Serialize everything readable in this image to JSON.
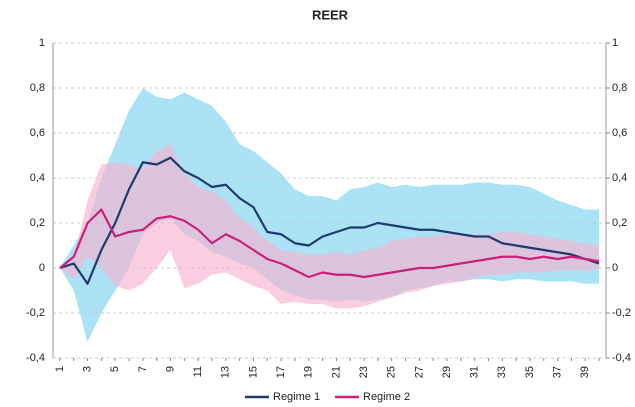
{
  "chart_data": {
    "type": "line",
    "title": "REER",
    "categories": [
      1,
      null,
      3,
      null,
      5,
      null,
      7,
      null,
      9,
      null,
      11,
      null,
      13,
      null,
      15,
      null,
      17,
      null,
      19,
      null,
      21,
      null,
      23,
      null,
      25,
      null,
      27,
      null,
      29,
      null,
      31,
      null,
      33,
      null,
      35,
      null,
      37,
      null,
      39,
      null
    ],
    "ylim": [
      -0.4,
      1
    ],
    "yticks": [
      {
        "value": -0.4,
        "label": "-0,4"
      },
      {
        "value": -0.2,
        "label": "-0,2"
      },
      0,
      {
        "value": 0.2,
        "label": "0,2"
      },
      {
        "value": 0.4,
        "label": "0,4"
      },
      {
        "value": 0.6,
        "label": "0,6"
      },
      {
        "value": 0.8,
        "label": "0,8"
      },
      1
    ],
    "y2lim": [
      -0.4,
      1
    ],
    "y2ticks": [
      {
        "value": -0.4,
        "label": "-0,4"
      },
      {
        "value": -0.2,
        "label": "-0,2"
      },
      0,
      {
        "value": 0.2,
        "label": "0,2"
      },
      {
        "value": 0.4,
        "label": "0,4"
      },
      {
        "value": 0.6,
        "label": "0,6"
      },
      {
        "value": 0.8,
        "label": "0,8"
      },
      1
    ],
    "grid": true,
    "legend": "bottom",
    "bands": [
      {
        "color": "#a8e0f5",
        "upper": [
          0,
          0.1,
          0.2,
          0.4,
          0.55,
          0.7,
          0.8,
          0.76,
          0.75,
          0.78,
          0.75,
          0.72,
          0.65,
          0.55,
          0.52,
          0.47,
          0.42,
          0.35,
          0.32,
          0.32,
          0.3,
          0.35,
          0.36,
          0.38,
          0.36,
          0.37,
          0.36,
          0.37,
          0.37,
          0.37,
          0.38,
          0.38,
          0.37,
          0.37,
          0.36,
          0.33,
          0.3,
          0.28,
          0.26,
          0.26
        ],
        "lower": [
          0,
          -0.1,
          -0.33,
          -0.2,
          -0.1,
          0,
          0.15,
          0.2,
          0.22,
          0.15,
          0.12,
          0.07,
          0.05,
          0.02,
          0,
          -0.05,
          -0.1,
          -0.12,
          -0.14,
          -0.14,
          -0.15,
          -0.14,
          -0.15,
          -0.14,
          -0.13,
          -0.1,
          -0.09,
          -0.08,
          -0.06,
          -0.06,
          -0.05,
          -0.05,
          -0.06,
          -0.05,
          -0.05,
          -0.06,
          -0.06,
          -0.06,
          -0.07,
          -0.07
        ]
      },
      {
        "color": "#f7b3cf",
        "upper": [
          0,
          0.05,
          0.3,
          0.46,
          0.47,
          0.46,
          0.44,
          0.52,
          0.55,
          0.42,
          0.36,
          0.34,
          0.3,
          0.22,
          0.18,
          0.12,
          0.08,
          0.07,
          0.06,
          0.06,
          0.07,
          0.06,
          0.08,
          0.09,
          0.12,
          0.13,
          0.14,
          0.14,
          0.15,
          0.15,
          0.15,
          0.15,
          0.16,
          0.16,
          0.15,
          0.14,
          0.13,
          0.12,
          0.11,
          0.1
        ],
        "lower": [
          0,
          -0.05,
          0.05,
          0,
          -0.08,
          -0.1,
          -0.07,
          0,
          0.08,
          -0.09,
          -0.07,
          -0.03,
          -0.02,
          -0.05,
          -0.08,
          -0.1,
          -0.16,
          -0.15,
          -0.16,
          -0.16,
          -0.18,
          -0.18,
          -0.17,
          -0.15,
          -0.13,
          -0.11,
          -0.1,
          -0.08,
          -0.07,
          -0.06,
          -0.04,
          -0.03,
          -0.03,
          -0.02,
          -0.02,
          -0.02,
          -0.01,
          -0.01,
          -0.01,
          0
        ]
      }
    ],
    "series": [
      {
        "name": "Regime 1",
        "color": "#1f3a6e",
        "values": [
          0,
          0.02,
          -0.07,
          0.08,
          0.2,
          0.35,
          0.47,
          0.46,
          0.49,
          0.43,
          0.4,
          0.36,
          0.37,
          0.31,
          0.27,
          0.16,
          0.15,
          0.11,
          0.1,
          0.14,
          0.16,
          0.18,
          0.18,
          0.2,
          0.19,
          0.18,
          0.17,
          0.17,
          0.16,
          0.15,
          0.14,
          0.14,
          0.11,
          0.1,
          0.09,
          0.08,
          0.07,
          0.06,
          0.04,
          0.02
        ]
      },
      {
        "name": "Regime 2",
        "color": "#cc1f7a",
        "values": [
          0,
          0.05,
          0.2,
          0.26,
          0.14,
          0.16,
          0.17,
          0.22,
          0.23,
          0.21,
          0.17,
          0.11,
          0.15,
          0.12,
          0.08,
          0.04,
          0.02,
          -0.01,
          -0.04,
          -0.02,
          -0.03,
          -0.03,
          -0.04,
          -0.03,
          -0.02,
          -0.01,
          0,
          0,
          0.01,
          0.02,
          0.03,
          0.04,
          0.05,
          0.05,
          0.04,
          0.05,
          0.04,
          0.05,
          0.04,
          0.03
        ]
      }
    ]
  }
}
